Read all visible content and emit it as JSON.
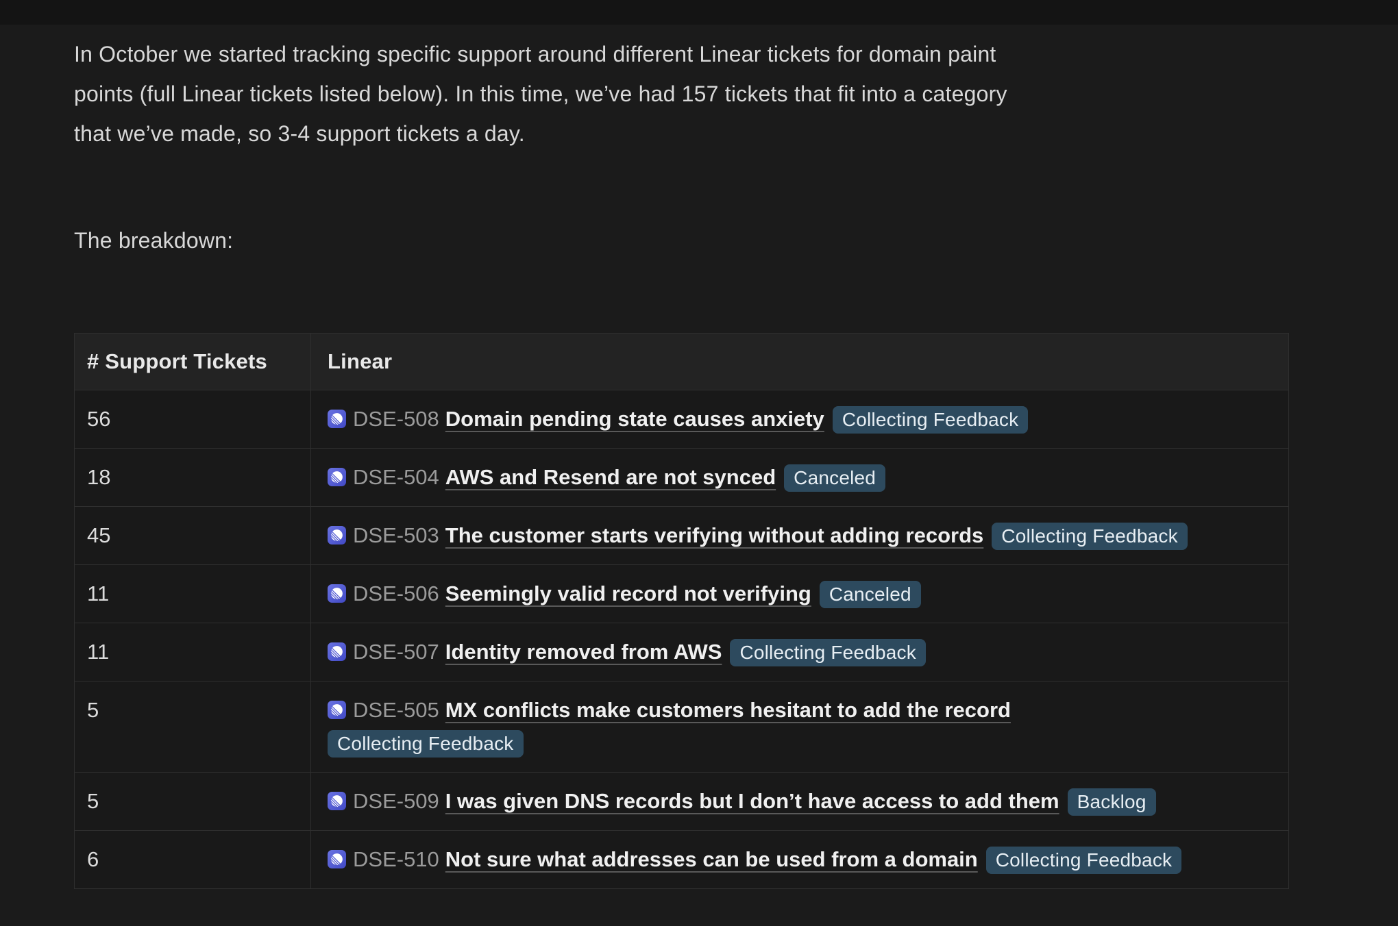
{
  "intro": {
    "lines": [
      "In October we started tracking specific support around different Linear tickets for domain paint",
      "points (full Linear tickets listed below). In this time, we’ve had 157 tickets that fit into a category",
      "that we’ve made, so 3-4 support tickets a day."
    ],
    "breakdown_label": "The breakdown:"
  },
  "table": {
    "columns": [
      "# Support Tickets",
      "Linear"
    ],
    "rows": [
      {
        "count": "56",
        "ticket_id": "DSE-508",
        "title": "Domain pending state causes anxiety",
        "status": "Collecting Feedback",
        "badge_on_new_line": false
      },
      {
        "count": "18",
        "ticket_id": "DSE-504",
        "title": "AWS and Resend are not synced",
        "status": "Canceled",
        "badge_on_new_line": false
      },
      {
        "count": "45",
        "ticket_id": "DSE-503",
        "title": "The customer starts verifying without adding records",
        "status": "Collecting Feedback",
        "badge_on_new_line": false
      },
      {
        "count": "11",
        "ticket_id": "DSE-506",
        "title": "Seemingly valid record not verifying",
        "status": "Canceled",
        "badge_on_new_line": false
      },
      {
        "count": "11",
        "ticket_id": "DSE-507",
        "title": "Identity removed from AWS",
        "status": "Collecting Feedback",
        "badge_on_new_line": false
      },
      {
        "count": "5",
        "ticket_id": "DSE-505",
        "title": "MX conflicts make customers hesitant to add the record",
        "status": "Collecting Feedback",
        "badge_on_new_line": true
      },
      {
        "count": "5",
        "ticket_id": "DSE-509",
        "title": "I was given DNS records but I don’t have access to add them",
        "status": "Backlog",
        "badge_on_new_line": false
      },
      {
        "count": "6",
        "ticket_id": "DSE-510",
        "title": "Not sure what addresses can be used from a domain",
        "status": "Collecting Feedback",
        "badge_on_new_line": false
      }
    ]
  },
  "icons": {
    "linear": "linear-app-logo"
  },
  "colors": {
    "page_bg": "#1b1b1b",
    "top_strip_bg": "#141414",
    "text_primary": "#d8d8d8",
    "table_header_bg": "#232323",
    "cell_bg": "#191919",
    "border": "#2f2f2f",
    "ticket_id": "#9b9b9b",
    "title": "#f0f0f0",
    "count": "#dcdcdc",
    "badge_bg": "#2d4a5e",
    "badge_text": "#e7eef3",
    "linear_icon_from": "#6a73e2",
    "linear_icon_to": "#4149c5"
  }
}
